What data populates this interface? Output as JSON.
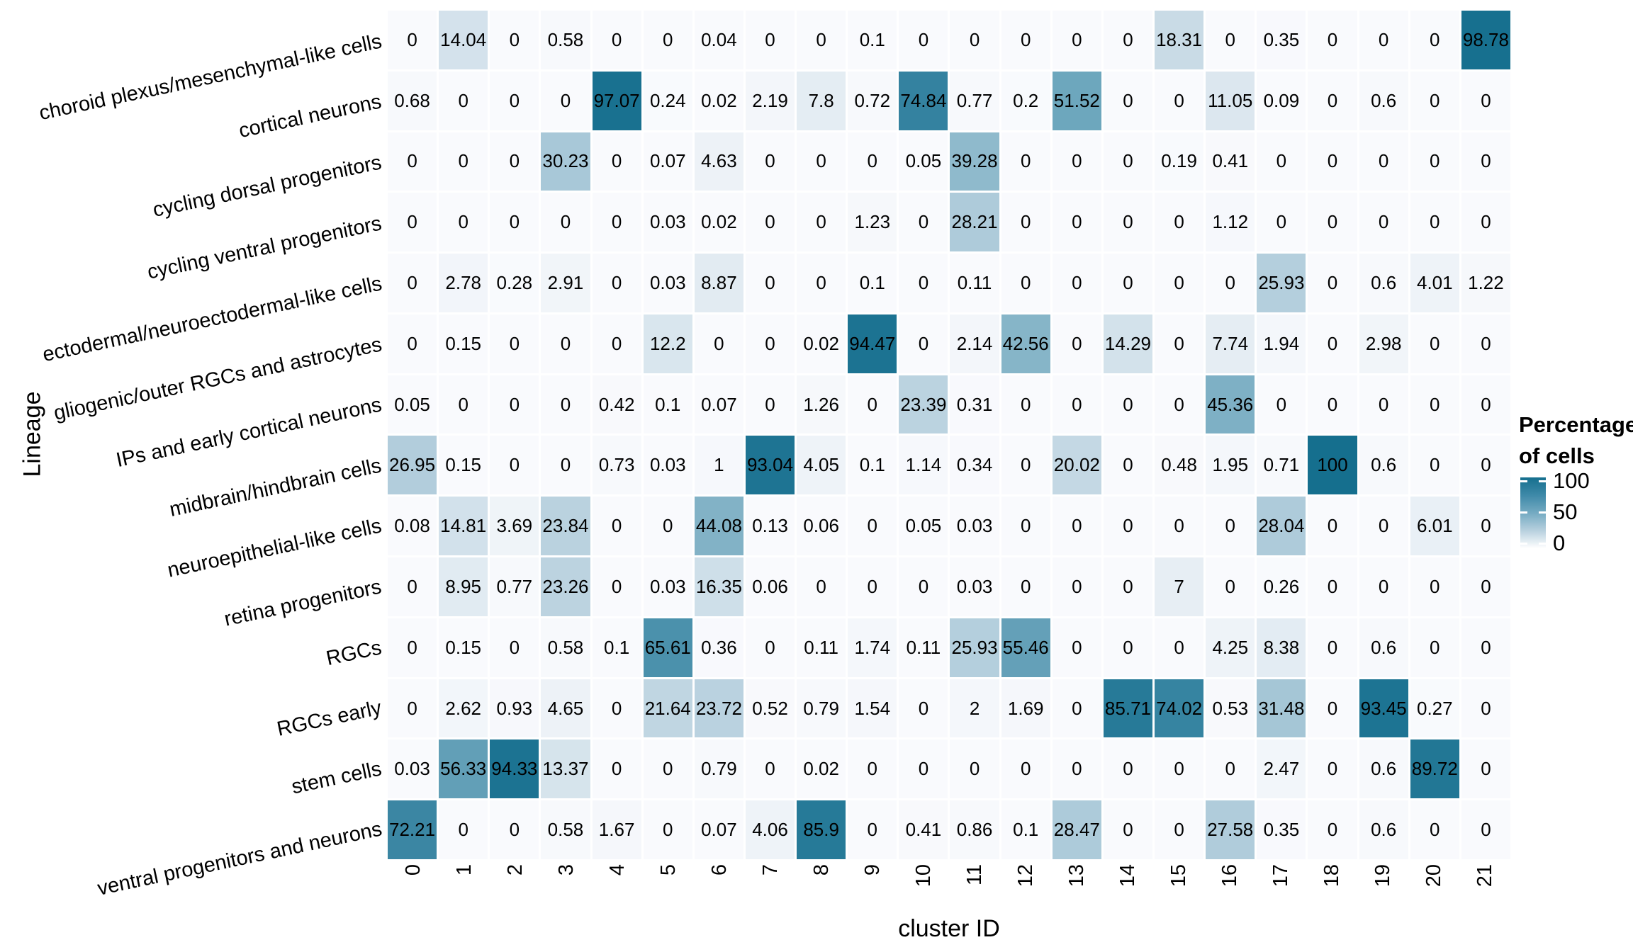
{
  "chart_data": {
    "type": "heatmap",
    "title": "",
    "xlabel": "cluster ID",
    "ylabel": "Lineage",
    "legend": {
      "title_line1": "Percentage",
      "title_line2": "of cells",
      "ticks": [
        "100",
        "50",
        "0"
      ],
      "position": "right",
      "color_max": "#156f8e",
      "color_mid": "#74aac2",
      "color_min": "#ffffff"
    },
    "value_range": [
      0,
      100
    ],
    "columns": [
      "0",
      "1",
      "2",
      "3",
      "4",
      "5",
      "6",
      "7",
      "8",
      "9",
      "10",
      "11",
      "12",
      "13",
      "14",
      "15",
      "16",
      "17",
      "18",
      "19",
      "20",
      "21"
    ],
    "rows": [
      {
        "label": "choroid plexus/mesenchymal-like cells",
        "values": [
          "0",
          "14.04",
          "0",
          "0.58",
          "0",
          "0",
          "0.04",
          "0",
          "0",
          "0.1",
          "0",
          "0",
          "0",
          "0",
          "0",
          "18.31",
          "0",
          "0.35",
          "0",
          "0",
          "0",
          "98.78"
        ]
      },
      {
        "label": "cortical neurons",
        "values": [
          "0.68",
          "0",
          "0",
          "0",
          "97.07",
          "0.24",
          "0.02",
          "2.19",
          "7.8",
          "0.72",
          "74.84",
          "0.77",
          "0.2",
          "51.52",
          "0",
          "0",
          "11.05",
          "0.09",
          "0",
          "0.6",
          "0",
          "0"
        ]
      },
      {
        "label": "cycling dorsal progenitors",
        "values": [
          "0",
          "0",
          "0",
          "30.23",
          "0",
          "0.07",
          "4.63",
          "0",
          "0",
          "0",
          "0.05",
          "39.28",
          "0",
          "0",
          "0",
          "0.19",
          "0.41",
          "0",
          "0",
          "0",
          "0",
          "0"
        ]
      },
      {
        "label": "cycling ventral progenitors",
        "values": [
          "0",
          "0",
          "0",
          "0",
          "0",
          "0.03",
          "0.02",
          "0",
          "0",
          "1.23",
          "0",
          "28.21",
          "0",
          "0",
          "0",
          "0",
          "1.12",
          "0",
          "0",
          "0",
          "0",
          "0"
        ]
      },
      {
        "label": "ectodermal/neuroectodermal-like cells",
        "values": [
          "0",
          "2.78",
          "0.28",
          "2.91",
          "0",
          "0.03",
          "8.87",
          "0",
          "0",
          "0.1",
          "0",
          "0.11",
          "0",
          "0",
          "0",
          "0",
          "0",
          "25.93",
          "0",
          "0.6",
          "4.01",
          "1.22"
        ]
      },
      {
        "label": "gliogenic/outer RGCs and astrocytes",
        "values": [
          "0",
          "0.15",
          "0",
          "0",
          "0",
          "12.2",
          "0",
          "0",
          "0.02",
          "94.47",
          "0",
          "2.14",
          "42.56",
          "0",
          "14.29",
          "0",
          "7.74",
          "1.94",
          "0",
          "2.98",
          "0",
          "0"
        ]
      },
      {
        "label": "IPs and early cortical neurons",
        "values": [
          "0.05",
          "0",
          "0",
          "0",
          "0.42",
          "0.1",
          "0.07",
          "0",
          "1.26",
          "0",
          "23.39",
          "0.31",
          "0",
          "0",
          "0",
          "0",
          "45.36",
          "0",
          "0",
          "0",
          "0",
          "0"
        ]
      },
      {
        "label": "midbrain/hindbrain cells",
        "values": [
          "26.95",
          "0.15",
          "0",
          "0",
          "0.73",
          "0.03",
          "1",
          "93.04",
          "4.05",
          "0.1",
          "1.14",
          "0.34",
          "0",
          "20.02",
          "0",
          "0.48",
          "1.95",
          "0.71",
          "100",
          "0.6",
          "0",
          "0"
        ]
      },
      {
        "label": "neuroepithelial-like cells",
        "values": [
          "0.08",
          "14.81",
          "3.69",
          "23.84",
          "0",
          "0",
          "44.08",
          "0.13",
          "0.06",
          "0",
          "0.05",
          "0.03",
          "0",
          "0",
          "0",
          "0",
          "0",
          "28.04",
          "0",
          "0",
          "6.01",
          "0"
        ]
      },
      {
        "label": "retina progenitors",
        "values": [
          "0",
          "8.95",
          "0.77",
          "23.26",
          "0",
          "0.03",
          "16.35",
          "0.06",
          "0",
          "0",
          "0",
          "0.03",
          "0",
          "0",
          "0",
          "7",
          "0",
          "0.26",
          "0",
          "0",
          "0",
          "0"
        ]
      },
      {
        "label": "RGCs",
        "values": [
          "0",
          "0.15",
          "0",
          "0.58",
          "0.1",
          "65.61",
          "0.36",
          "0",
          "0.11",
          "1.74",
          "0.11",
          "25.93",
          "55.46",
          "0",
          "0",
          "0",
          "4.25",
          "8.38",
          "0",
          "0.6",
          "0",
          "0"
        ]
      },
      {
        "label": "RGCs early",
        "values": [
          "0",
          "2.62",
          "0.93",
          "4.65",
          "0",
          "21.64",
          "23.72",
          "0.52",
          "0.79",
          "1.54",
          "0",
          "2",
          "1.69",
          "0",
          "85.71",
          "74.02",
          "0.53",
          "31.48",
          "0",
          "93.45",
          "0.27",
          "0"
        ]
      },
      {
        "label": "stem cells",
        "values": [
          "0.03",
          "56.33",
          "94.33",
          "13.37",
          "0",
          "0",
          "0.79",
          "0",
          "0.02",
          "0",
          "0",
          "0",
          "0",
          "0",
          "0",
          "0",
          "0",
          "2.47",
          "0",
          "0.6",
          "89.72",
          "0"
        ]
      },
      {
        "label": "ventral progenitors and neurons",
        "values": [
          "72.21",
          "0",
          "0",
          "0.58",
          "1.67",
          "0",
          "0.07",
          "4.06",
          "85.9",
          "0",
          "0.41",
          "0.86",
          "0.1",
          "28.47",
          "0",
          "0",
          "27.58",
          "0.35",
          "0",
          "0.6",
          "0",
          "0"
        ]
      }
    ]
  }
}
